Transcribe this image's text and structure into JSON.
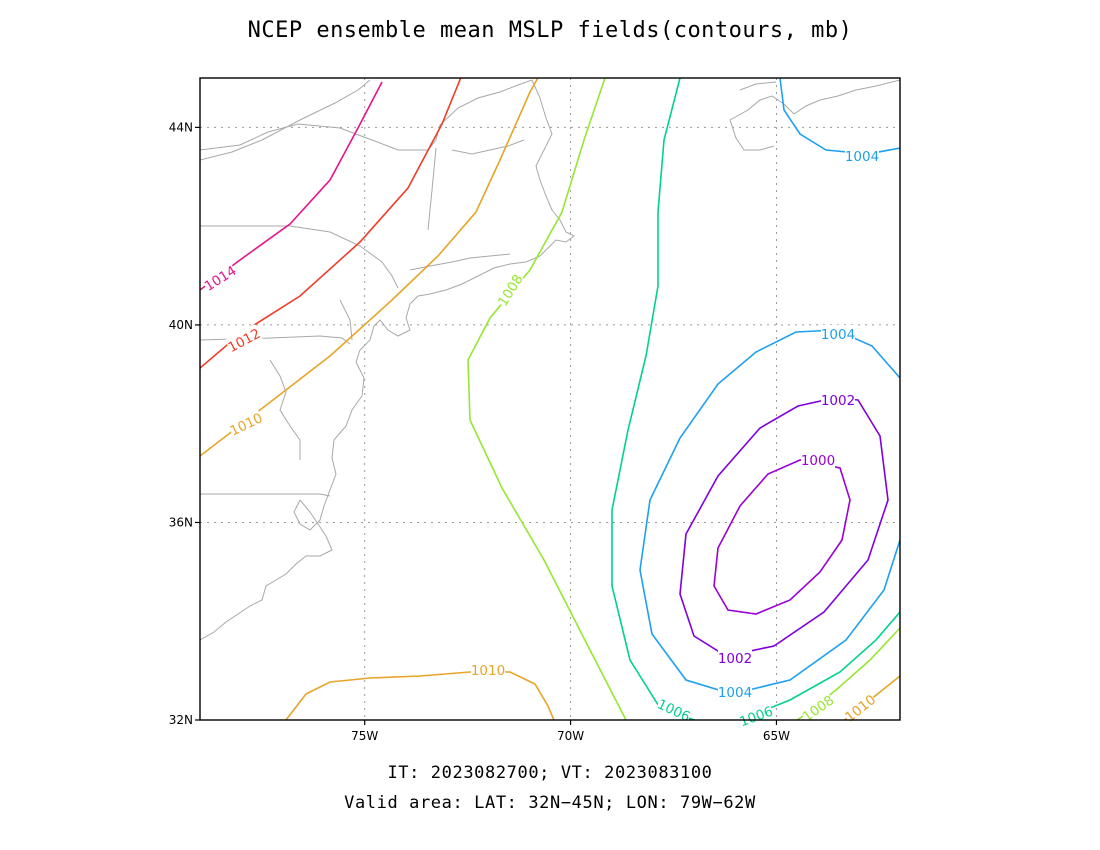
{
  "title": "NCEP ensemble mean MSLP fields(contours, mb)",
  "footer": {
    "line1": "IT: 2023082700; VT: 2023083100",
    "line2": "Valid area: LAT: 32N−45N; LON: 79W−62W"
  },
  "map": {
    "lat_range": [
      32,
      45
    ],
    "lon_range": [
      -79,
      -62
    ],
    "gridlines": "dotted",
    "lat_ticks": [
      {
        "value": 32,
        "label": "32N"
      },
      {
        "value": 36,
        "label": "36N"
      },
      {
        "value": 40,
        "label": "40N"
      },
      {
        "value": 44,
        "label": "44N"
      }
    ],
    "lon_ticks": [
      {
        "value": -75,
        "label": "75W"
      },
      {
        "value": -70,
        "label": "70W"
      },
      {
        "value": -65,
        "label": "65W"
      }
    ]
  },
  "contours": [
    {
      "value": 1000,
      "color": "#9b00d6"
    },
    {
      "value": 1002,
      "color": "#8000e0"
    },
    {
      "value": 1004,
      "color": "#1ea0f0"
    },
    {
      "value": 1006,
      "color": "#00d28c"
    },
    {
      "value": 1008,
      "color": "#96e632"
    },
    {
      "value": 1010,
      "color": "#e6a428"
    },
    {
      "value": 1012,
      "color": "#f03c28"
    },
    {
      "value": 1014,
      "color": "#e6148c"
    }
  ],
  "contour_labels": [
    {
      "text": "1014",
      "color": "#e6148c"
    },
    {
      "text": "1012",
      "color": "#f03c28"
    },
    {
      "text": "1010",
      "color": "#e6a428"
    },
    {
      "text": "1008",
      "color": "#96e632"
    },
    {
      "text": "1004",
      "color": "#1ea0f0"
    },
    {
      "text": "1004",
      "color": "#1ea0f0"
    },
    {
      "text": "1002",
      "color": "#8000e0"
    },
    {
      "text": "1000",
      "color": "#9b00d6"
    },
    {
      "text": "1002",
      "color": "#8000e0"
    },
    {
      "text": "1004",
      "color": "#1ea0f0"
    },
    {
      "text": "1010",
      "color": "#e6a428"
    },
    {
      "text": "1006",
      "color": "#00d28c"
    },
    {
      "text": "1006",
      "color": "#00d28c"
    },
    {
      "text": "1008",
      "color": "#96e632"
    },
    {
      "text": "1010",
      "color": "#e6a428"
    }
  ]
}
